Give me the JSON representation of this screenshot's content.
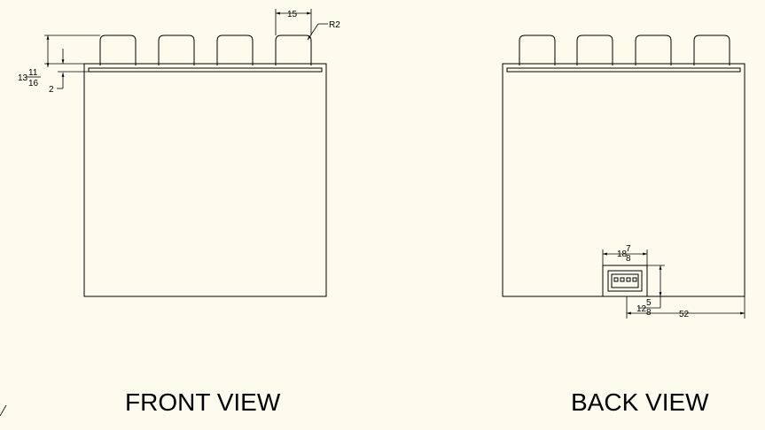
{
  "views": {
    "front": {
      "title": "FRONT VIEW"
    },
    "back": {
      "title": "BACK VIEW"
    }
  },
  "front_dims": {
    "tab_width": "15",
    "radius": "R2",
    "d_13": "13",
    "d_11": "11",
    "d_16": "16",
    "d_2": "2"
  },
  "back_dims": {
    "conn_w_whole": "18",
    "conn_w_num": "7",
    "conn_w_den": "8",
    "conn_h_whole": "12",
    "conn_h_num": "5",
    "conn_h_den": "8",
    "offset": "52"
  },
  "colors": {
    "background": "#fdfbee",
    "line": "#000000"
  }
}
